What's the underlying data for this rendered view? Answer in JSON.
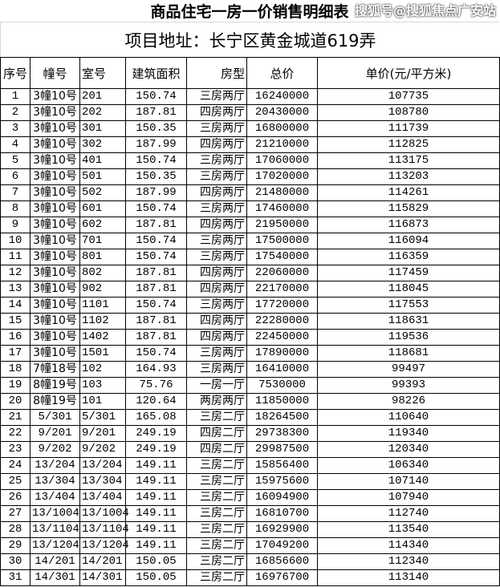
{
  "title": "商品住宅一房一价销售明细表",
  "address": "项目地址：长宁区黄金城道619弄",
  "headers": [
    "序号",
    "幢号",
    "室号",
    "建筑面积",
    "房型",
    "总价",
    "单价(元/平方米)"
  ],
  "rows": [
    [
      "1",
      "3幢10号",
      "201",
      "150.74",
      "三房两厅",
      "16240000",
      "107735"
    ],
    [
      "2",
      "3幢10号",
      "202",
      "187.81",
      "四房两厅",
      "20430000",
      "108780"
    ],
    [
      "3",
      "3幢10号",
      "301",
      "150.35",
      "三房两厅",
      "16800000",
      "111739"
    ],
    [
      "4",
      "3幢10号",
      "302",
      "187.99",
      "四房两厅",
      "21210000",
      "112825"
    ],
    [
      "5",
      "3幢10号",
      "401",
      "150.74",
      "三房两厅",
      "17060000",
      "113175"
    ],
    [
      "6",
      "3幢10号",
      "501",
      "150.35",
      "三房两厅",
      "17020000",
      "113203"
    ],
    [
      "7",
      "3幢10号",
      "502",
      "187.99",
      "四房两厅",
      "21480000",
      "114261"
    ],
    [
      "8",
      "3幢10号",
      "601",
      "150.74",
      "三房两厅",
      "17460000",
      "115829"
    ],
    [
      "9",
      "3幢10号",
      "602",
      "187.81",
      "四房两厅",
      "21950000",
      "116873"
    ],
    [
      "10",
      "3幢10号",
      "701",
      "150.74",
      "三房两厅",
      "17500000",
      "116094"
    ],
    [
      "11",
      "3幢10号",
      "801",
      "150.74",
      "三房两厅",
      "17540000",
      "116359"
    ],
    [
      "12",
      "3幢10号",
      "802",
      "187.81",
      "四房两厅",
      "22060000",
      "117459"
    ],
    [
      "13",
      "3幢10号",
      "902",
      "187.81",
      "四房两厅",
      "22170000",
      "118045"
    ],
    [
      "14",
      "3幢10号",
      "1101",
      "150.74",
      "三房两厅",
      "17720000",
      "117553"
    ],
    [
      "15",
      "3幢10号",
      "1102",
      "187.81",
      "四房两厅",
      "22280000",
      "118631"
    ],
    [
      "16",
      "3幢10号",
      "1402",
      "187.81",
      "四房两厅",
      "22450000",
      "119536"
    ],
    [
      "17",
      "3幢10号",
      "1501",
      "150.74",
      "三房两厅",
      "17890000",
      "118681"
    ],
    [
      "18",
      "7幢18号",
      "102",
      "164.93",
      "三房两厅",
      "16410000",
      "99497"
    ],
    [
      "19",
      "8幢19号",
      "103",
      "75.76",
      "一房一厅",
      "7530000",
      "99393"
    ],
    [
      "20",
      "8幢19号",
      "101",
      "120.64",
      "两房两厅",
      "11850000",
      "98226"
    ],
    [
      "21",
      "5/301",
      "5/301",
      "165.08",
      "三房二厅",
      "18264500",
      "110640"
    ],
    [
      "22",
      "9/201",
      "9/201",
      "249.19",
      "四房二厅",
      "29738300",
      "119340"
    ],
    [
      "23",
      "9/202",
      "9/202",
      "249.19",
      "四房二厅",
      "29987500",
      "120340"
    ],
    [
      "24",
      "13/204",
      "13/204",
      "149.11",
      "三房二厅",
      "15856400",
      "106340"
    ],
    [
      "25",
      "13/304",
      "13/304",
      "149.11",
      "三房二厅",
      "15975600",
      "107140"
    ],
    [
      "26",
      "13/404",
      "13/404",
      "149.11",
      "三房二厅",
      "16094900",
      "107940"
    ],
    [
      "27",
      "13/1004",
      "13/1004",
      "149.11",
      "三房二厅",
      "16810700",
      "112740"
    ],
    [
      "28",
      "13/1104",
      "13/1104",
      "149.11",
      "三房二厅",
      "16929900",
      "113540"
    ],
    [
      "29",
      "13/1204",
      "13/1204",
      "149.11",
      "三房二厅",
      "17049200",
      "114340"
    ],
    [
      "30",
      "14/201",
      "14/201",
      "150.05",
      "三房二厅",
      "16856600",
      "112340"
    ],
    [
      "31",
      "14/301",
      "14/301",
      "150.05",
      "三房二厅",
      "16976700",
      "113140"
    ]
  ],
  "watermark": "搜狐号@搜狐焦点广安站"
}
